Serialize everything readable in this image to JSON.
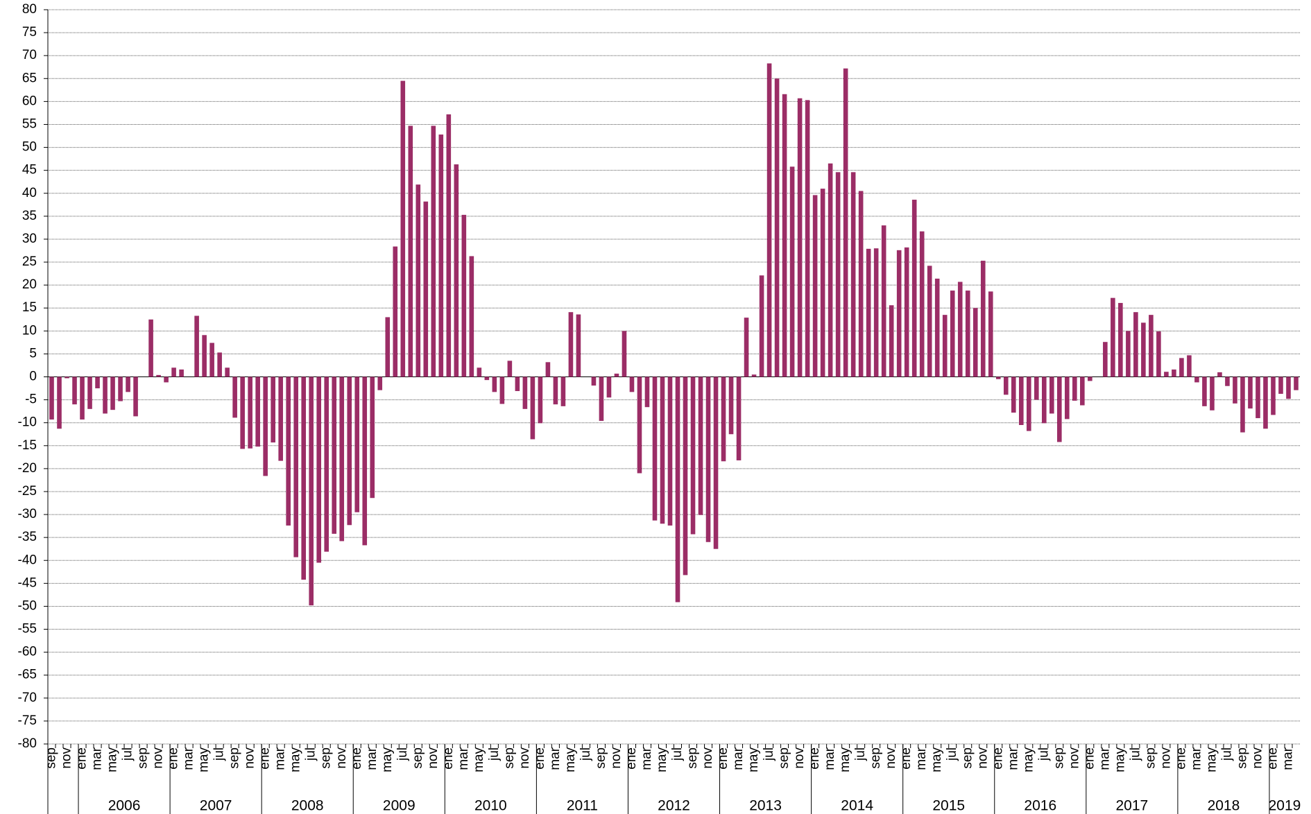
{
  "chart_data": {
    "type": "bar",
    "categories": [
      "sep",
      null,
      "nov",
      null,
      "ene",
      null,
      "mar",
      null,
      "may",
      null,
      "jul",
      null,
      "sep",
      null,
      "nov",
      null,
      "ene",
      null,
      "mar",
      null,
      "may",
      null,
      "jul",
      null,
      "sep",
      null,
      "nov",
      null,
      "ene",
      null,
      "mar",
      null,
      "may",
      null,
      "jul",
      null,
      "sep",
      null,
      "nov",
      null,
      "ene",
      null,
      "mar",
      null,
      "may",
      null,
      "jul",
      null,
      "sep",
      null,
      "nov",
      null,
      "ene",
      null,
      "mar",
      null,
      "may",
      null,
      "jul",
      null,
      "sep",
      null,
      "nov",
      null,
      "ene",
      null,
      "mar",
      null,
      "may",
      null,
      "jul",
      null,
      "sep",
      null,
      "nov",
      null,
      "ene",
      null,
      "mar",
      null,
      "may",
      null,
      "jul",
      null,
      "sep",
      null,
      "nov",
      null,
      "ene",
      null,
      "mar",
      null,
      "may",
      null,
      "jul",
      null,
      "sep",
      null,
      "nov",
      null,
      "ene",
      null,
      "mar",
      null,
      "may",
      null,
      "jul",
      null,
      "sep",
      null,
      "nov",
      null,
      "ene",
      null,
      "mar",
      null,
      "may",
      null,
      "jul",
      null,
      "sep",
      null,
      "nov",
      null,
      "ene",
      null,
      "mar",
      null,
      "may",
      null,
      "jul",
      null,
      "sep",
      null,
      "nov",
      null,
      "ene",
      null,
      "mar",
      null,
      "may",
      null,
      "jul",
      null,
      "sep",
      null,
      "nov",
      null,
      "ene",
      null,
      "mar",
      null,
      "may",
      null,
      "jul",
      null,
      "sep",
      null,
      "nov",
      null,
      "ene",
      null,
      "mar",
      null
    ],
    "years": [
      "2006",
      "2007",
      "2008",
      "2009",
      "2010",
      "2011",
      "2012",
      "2013",
      "2014",
      "2015",
      "2016",
      "2017",
      "2018",
      "2019"
    ],
    "values": [
      -9.3,
      -11.3,
      -0.3,
      -6,
      -9.3,
      -7,
      -2.5,
      -8,
      -7.2,
      -5.3,
      -3.3,
      -8.6,
      0,
      12.5,
      0.4,
      -1.2,
      2,
      1.6,
      0,
      13.3,
      9.1,
      7.4,
      5.3,
      2,
      -8.9,
      -15.7,
      -15.6,
      -15.2,
      -21.6,
      -14.3,
      -18.3,
      -32.4,
      -39.3,
      -44.2,
      -49.8,
      -40.5,
      -38.1,
      -34.2,
      -35.8,
      -32.3,
      -29.5,
      -36.7,
      -26.4,
      -2.9,
      13,
      28.4,
      64.5,
      54.7,
      41.9,
      38.2,
      54.7,
      52.8,
      57.2,
      46.3,
      35.3,
      26.3,
      2,
      -0.7,
      -3.3,
      -5.9,
      3.5,
      -3.1,
      -7,
      -13.6,
      -10.1,
      3.2,
      -6,
      -6.4,
      14.1,
      13.6,
      0,
      -1.9,
      -9.6,
      -4.5,
      0.7,
      10,
      -3.3,
      -21,
      -6.6,
      -31.3,
      -32,
      -32.4,
      -49.1,
      -43.2,
      -34.3,
      -30.1,
      -36,
      -37.5,
      -18.4,
      -12.5,
      -18.2,
      12.9,
      0.5,
      22.1,
      68.3,
      65,
      61.6,
      45.8,
      60.7,
      60.3,
      39.6,
      41,
      46.5,
      44.6,
      67.2,
      44.6,
      40.5,
      27.9,
      28,
      33,
      15.6,
      27.6,
      28.2,
      38.6,
      31.7,
      24.2,
      21.4,
      13.5,
      18.8,
      20.7,
      18.8,
      15,
      25.3,
      18.6,
      -0.5,
      -3.9,
      -7.8,
      -10.5,
      -11.8,
      -5,
      -10.1,
      -8,
      -14.2,
      -9.2,
      -5.2,
      -6.2,
      -0.9,
      0,
      7.6,
      17.2,
      16.1,
      10,
      14.1,
      11.8,
      13.5,
      9.9,
      1.1,
      1.6,
      4.1,
      4.7,
      -1.2,
      -6.4,
      -7.3,
      1,
      -2,
      -5.8,
      -12.1,
      -6.9,
      -9,
      -11.3,
      -8.3,
      -3.7,
      -4.8,
      -2.9
    ],
    "color": "#9b2d66",
    "ylim": [
      -80,
      80
    ],
    "yticks": [
      -80,
      -75,
      -70,
      -65,
      -60,
      -55,
      -50,
      -45,
      -40,
      -35,
      -30,
      -25,
      -20,
      -15,
      -10,
      -5,
      0,
      5,
      10,
      15,
      20,
      25,
      30,
      35,
      40,
      45,
      50,
      55,
      60,
      65,
      70,
      75,
      80
    ],
    "grid": true
  }
}
